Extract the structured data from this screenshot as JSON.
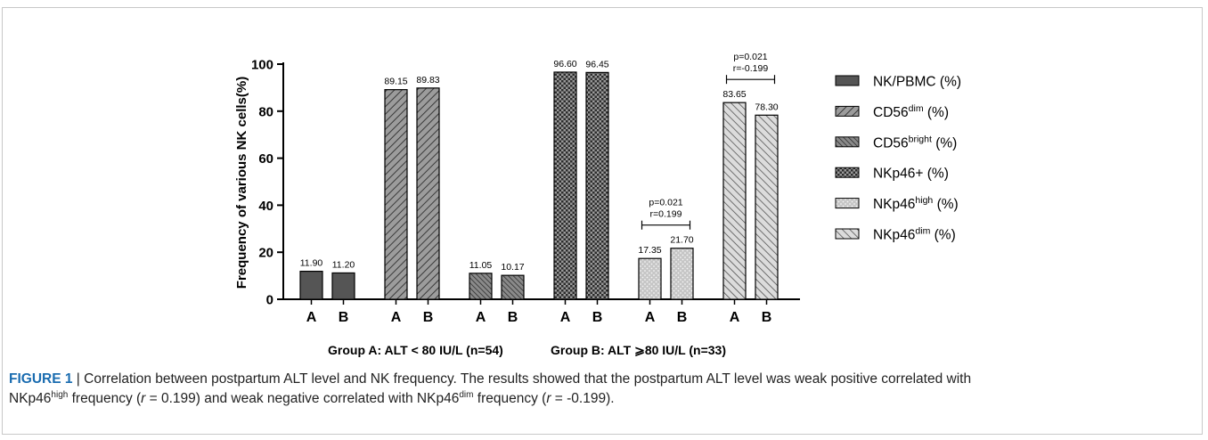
{
  "chart_data": {
    "type": "bar",
    "ylabel": "Frequency of various NK cells(%)",
    "ylim": [
      0,
      100
    ],
    "yticks": [
      0,
      20,
      40,
      60,
      80,
      100
    ],
    "categories": [
      "A",
      "B"
    ],
    "groups_footer": {
      "a": "Group A: ALT < 80 IU/L (n=54)",
      "b": "Group B: ALT ⩾80 IU/L (n=33)"
    },
    "series": [
      {
        "name": "NK/PBMC (%)",
        "label_main": "NK/PBMC (%)",
        "label_sup": "",
        "label_tail": "",
        "values": [
          11.9,
          11.2
        ],
        "value_labels": [
          "11.90",
          "11.20"
        ],
        "fill": "#555555",
        "pattern": "solid"
      },
      {
        "name": "CD56dim (%)",
        "label_main": "CD56",
        "label_sup": "dim",
        "label_tail": " (%)",
        "values": [
          89.15,
          89.83
        ],
        "value_labels": [
          "89.15",
          "89.83"
        ],
        "fill": "#8a8a8a",
        "pattern": "hatch-fine"
      },
      {
        "name": "CD56bright (%)",
        "label_main": "CD56",
        "label_sup": "bright",
        "label_tail": " (%)",
        "values": [
          11.05,
          10.17
        ],
        "value_labels": [
          "11.05",
          "10.17"
        ],
        "fill": "#8a8a8a",
        "pattern": "hatch-dense"
      },
      {
        "name": "NKp46+ (%)",
        "label_main": "NKp46+ (%)",
        "label_sup": "",
        "label_tail": "",
        "values": [
          96.6,
          96.45
        ],
        "value_labels": [
          "96.60",
          "96.45"
        ],
        "fill": "#9a9a9a",
        "pattern": "checker"
      },
      {
        "name": "NKp46high (%)",
        "label_main": "NKp46",
        "label_sup": "high",
        "label_tail": " (%)",
        "values": [
          17.35,
          21.7
        ],
        "value_labels": [
          "17.35",
          "21.70"
        ],
        "fill": "#c4c4c4",
        "pattern": "dots"
      },
      {
        "name": "NKp46dim (%)",
        "label_main": "NKp46",
        "label_sup": "dim",
        "label_tail": " (%)",
        "values": [
          83.65,
          78.3
        ],
        "value_labels": [
          "83.65",
          "78.30"
        ],
        "fill": "#d8d8d8",
        "pattern": "hatch-back"
      }
    ],
    "annotations": [
      {
        "series_index": 4,
        "p_text": "p=0.021",
        "r_text": "r=0.199"
      },
      {
        "series_index": 5,
        "p_text": "p=0.021",
        "r_text": "r=-0.199"
      }
    ],
    "legend_position": "right"
  },
  "caption": {
    "label": "FIGURE 1",
    "separator": " | ",
    "text_1": "Correlation between postpartum ALT level and NK frequency. The results showed that the postpartum ALT level was weak positive correlated with",
    "text_2a": "NKp46",
    "text_2a_sup": "high",
    "text_2b": " frequency (",
    "text_2b_r": "r",
    "text_2c": " = 0.199) and weak negative correlated with NKp46",
    "text_2c_sup": "dim",
    "text_2d": " frequency (",
    "text_2d_r": "r",
    "text_2e": " = -0.199)."
  }
}
